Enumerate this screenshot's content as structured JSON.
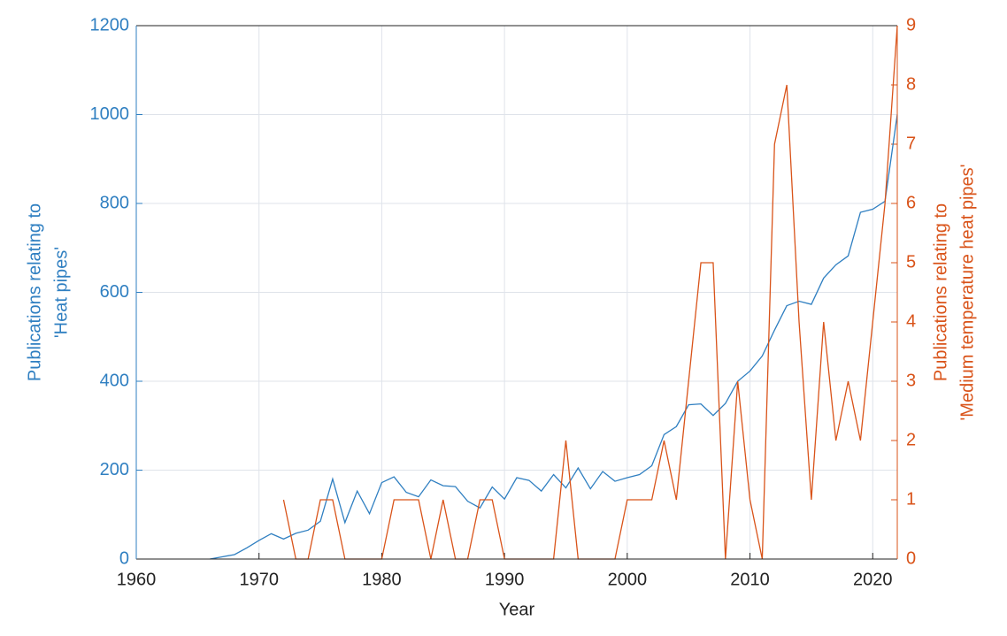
{
  "chart_data": {
    "type": "line",
    "xlabel": "Year",
    "ylabel": [
      "Publications relating to",
      "'Heat pipes'"
    ],
    "y2label": [
      "Publications relating to",
      "'Medium temperature heat pipes'"
    ],
    "x": [
      1966,
      1967,
      1968,
      1969,
      1970,
      1971,
      1972,
      1973,
      1974,
      1975,
      1976,
      1977,
      1978,
      1979,
      1980,
      1981,
      1982,
      1983,
      1984,
      1985,
      1986,
      1987,
      1988,
      1989,
      1990,
      1991,
      1992,
      1993,
      1994,
      1995,
      1996,
      1997,
      1998,
      1999,
      2000,
      2001,
      2002,
      2003,
      2004,
      2005,
      2006,
      2007,
      2008,
      2009,
      2010,
      2011,
      2012,
      2013,
      2014,
      2015,
      2016,
      2017,
      2018,
      2019,
      2020,
      2021,
      2022
    ],
    "series": [
      {
        "color": "#2f7fc1",
        "axis": "y",
        "values": [
          0,
          5,
          10,
          25,
          42,
          57,
          45,
          58,
          65,
          85,
          180,
          82,
          153,
          102,
          172,
          185,
          150,
          140,
          178,
          165,
          163,
          130,
          115,
          162,
          135,
          183,
          177,
          153,
          190,
          160,
          205,
          158,
          197,
          175,
          183,
          190,
          210,
          280,
          298,
          347,
          349,
          323,
          350,
          400,
          423,
          457,
          515,
          570,
          580,
          573,
          632,
          662,
          682,
          780,
          787,
          805,
          1000
        ]
      },
      {
        "color": "#d95319",
        "axis": "y2",
        "values": [
          null,
          null,
          null,
          null,
          null,
          null,
          1,
          0,
          0,
          1,
          1,
          0,
          0,
          0,
          0,
          1,
          1,
          1,
          0,
          1,
          0,
          0,
          1,
          1,
          0,
          0,
          0,
          0,
          0,
          2,
          0,
          0,
          0,
          0,
          1,
          1,
          1,
          2,
          1,
          3,
          5,
          5,
          0,
          3,
          1,
          0,
          7,
          8,
          4,
          1,
          4,
          2,
          3,
          2,
          4,
          6,
          9
        ]
      }
    ],
    "xlim": [
      1960,
      2022
    ],
    "xticks": [
      1960,
      1970,
      1980,
      1990,
      2000,
      2010,
      2020
    ],
    "ylim": [
      0,
      1200
    ],
    "yticks": [
      0,
      200,
      400,
      600,
      800,
      1000,
      1200
    ],
    "y2lim": [
      0,
      9
    ],
    "y2ticks": [
      0,
      1,
      2,
      3,
      4,
      5,
      6,
      7,
      8,
      9
    ],
    "grid": true
  }
}
